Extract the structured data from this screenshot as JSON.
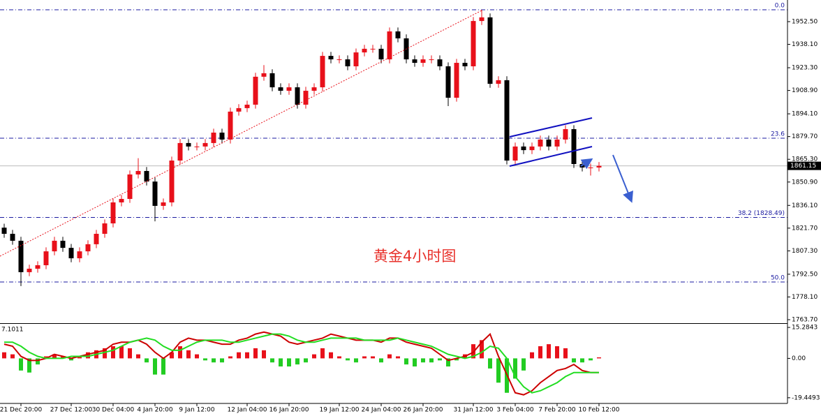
{
  "chart_data": [
    {
      "type": "candlestick",
      "annotation": "黄金4小时图",
      "categories": [
        null,
        null,
        "21 Dec 20:00",
        null,
        null,
        null,
        null,
        null,
        "27 Dec 12:00",
        null,
        null,
        null,
        null,
        "30 Dec 04:00",
        null,
        null,
        null,
        null,
        "4 Jan 20:00",
        null,
        null,
        null,
        null,
        "9 Jan 12:00",
        null,
        null,
        null,
        null,
        null,
        "12 Jan 04:00",
        null,
        null,
        null,
        null,
        "16 Jan 20:00",
        null,
        null,
        null,
        null,
        null,
        "19 Jan 12:00",
        null,
        null,
        null,
        null,
        "24 Jan 04:00",
        null,
        null,
        null,
        null,
        "26 Jan 20:00",
        null,
        null,
        null,
        null,
        null,
        "31 Jan 12:00",
        null,
        null,
        null,
        null,
        "3 Feb 04:00",
        null,
        null,
        null,
        null,
        "7 Feb 20:00",
        null,
        null,
        null,
        null,
        "10 Feb 12:00"
      ],
      "open": [
        1822.0,
        1818.1,
        1813.7,
        1793.8,
        1796.0,
        1798.2,
        1807.0,
        1813.7,
        1809.2,
        1802.6,
        1807.0,
        1811.5,
        1818.1,
        1824.7,
        1838.0,
        1840.2,
        1855.7,
        1857.9,
        1851.2,
        1835.8,
        1838.0,
        1864.5,
        1875.6,
        1873.4,
        1873.4,
        1875.6,
        1882.2,
        1877.8,
        1895.5,
        1897.7,
        1899.9,
        1917.6,
        1919.8,
        1910.9,
        1908.7,
        1910.9,
        1899.9,
        1908.7,
        1910.9,
        1930.8,
        1928.6,
        1928.6,
        1924.2,
        1933.0,
        1935.3,
        1935.3,
        1928.6,
        1946.3,
        1941.9,
        1928.6,
        1926.4,
        1928.6,
        1928.6,
        1924.2,
        1904.3,
        1926.4,
        1924.2,
        1952.9,
        1955.2,
        1913.1,
        1915.4,
        1864.5,
        1873.4,
        1871.1,
        1873.4,
        1877.8,
        1873.4,
        1877.8,
        1884.4,
        1862.3,
        1860.1,
        1860.1
      ],
      "high": [
        1824.5,
        1820.6,
        1816.2,
        1798.5,
        1800.7,
        1809.5,
        1816.2,
        1816.2,
        1811.7,
        1809.5,
        1814.0,
        1820.6,
        1827.2,
        1840.5,
        1842.7,
        1858.2,
        1866.0,
        1860.4,
        1853.7,
        1840.5,
        1867.0,
        1878.1,
        1878.1,
        1875.9,
        1878.1,
        1884.7,
        1884.7,
        1898.0,
        1900.2,
        1902.4,
        1920.1,
        1925.0,
        1922.3,
        1913.4,
        1913.4,
        1913.4,
        1911.2,
        1913.4,
        1933.3,
        1933.3,
        1931.1,
        1931.1,
        1935.5,
        1937.8,
        1937.8,
        1937.8,
        1948.8,
        1948.8,
        1944.4,
        1931.1,
        1931.1,
        1931.1,
        1931.1,
        1926.7,
        1928.9,
        1928.9,
        1955.4,
        1960.0,
        1957.7,
        1917.9,
        1917.9,
        1875.9,
        1875.9,
        1875.9,
        1880.3,
        1880.3,
        1880.3,
        1886.9,
        1886.9,
        1864.8,
        1862.6,
        1863.6
      ],
      "low": [
        1815.6,
        1811.2,
        1785.0,
        1791.3,
        1793.5,
        1795.7,
        1804.5,
        1806.7,
        1800.1,
        1800.1,
        1804.5,
        1809.0,
        1815.6,
        1822.2,
        1835.5,
        1837.7,
        1853.2,
        1848.7,
        1826.0,
        1833.3,
        1835.5,
        1862.0,
        1870.9,
        1870.9,
        1870.9,
        1873.1,
        1875.3,
        1875.3,
        1893.0,
        1895.2,
        1897.4,
        1915.1,
        1908.4,
        1906.2,
        1906.2,
        1897.4,
        1897.4,
        1906.2,
        1908.4,
        1926.1,
        1926.1,
        1921.7,
        1921.7,
        1930.5,
        1932.8,
        1926.1,
        1926.1,
        1939.4,
        1926.1,
        1923.9,
        1923.9,
        1926.1,
        1921.7,
        1899.0,
        1901.8,
        1921.7,
        1921.7,
        1950.4,
        1910.6,
        1910.6,
        1862.0,
        1862.0,
        1868.6,
        1868.6,
        1870.9,
        1870.9,
        1870.9,
        1875.3,
        1859.8,
        1857.6,
        1855.0,
        1857.6
      ],
      "close": [
        1818.1,
        1813.7,
        1793.8,
        1796.0,
        1798.2,
        1807.0,
        1813.7,
        1809.2,
        1802.6,
        1807.0,
        1811.5,
        1818.1,
        1824.7,
        1838.0,
        1840.2,
        1855.7,
        1857.9,
        1851.2,
        1835.8,
        1838.0,
        1864.5,
        1875.6,
        1873.4,
        1873.4,
        1875.6,
        1882.2,
        1877.8,
        1895.5,
        1897.7,
        1899.9,
        1917.6,
        1919.8,
        1910.9,
        1908.7,
        1910.9,
        1899.9,
        1908.7,
        1910.9,
        1930.8,
        1928.6,
        1928.6,
        1924.2,
        1933.0,
        1935.3,
        1935.3,
        1928.6,
        1946.3,
        1941.9,
        1928.6,
        1926.4,
        1928.6,
        1928.6,
        1924.2,
        1904.3,
        1926.4,
        1924.2,
        1952.9,
        1955.2,
        1913.1,
        1915.4,
        1864.5,
        1873.4,
        1871.1,
        1873.4,
        1877.8,
        1873.4,
        1877.8,
        1884.4,
        1862.3,
        1860.1,
        1860.1,
        1861.15
      ],
      "up_color": "#e8101a",
      "down_color": "#000000",
      "ylim": [
        1761.5,
        1966.2
      ],
      "yticks": [
        {
          "value": 1952.5,
          "label": "1952.50"
        },
        {
          "value": 1938.1,
          "label": "1938.10"
        },
        {
          "value": 1923.3,
          "label": "1923.30"
        },
        {
          "value": 1908.9,
          "label": "1908.90"
        },
        {
          "value": 1894.1,
          "label": "1894.10"
        },
        {
          "value": 1879.7,
          "label": "1879.70"
        },
        {
          "value": 1865.3,
          "label": "1865.30"
        },
        {
          "value": 1850.9,
          "label": "1850.90"
        },
        {
          "value": 1836.1,
          "label": "1836.10"
        },
        {
          "value": 1821.7,
          "label": "1821.70"
        },
        {
          "value": 1807.3,
          "label": "1807.30"
        },
        {
          "value": 1792.5,
          "label": "1792.50"
        },
        {
          "value": 1778.1,
          "label": "1778.10"
        },
        {
          "value": 1763.7,
          "label": "1763.70"
        }
      ],
      "fib_levels": [
        {
          "level": "0.0",
          "price": 1959.99
        },
        {
          "level": "23.6",
          "price": 1878.66
        },
        {
          "level": "38.2 (1828.49)",
          "price": 1828.49
        },
        {
          "level": "50.0",
          "price": 1787.6
        }
      ],
      "fib_color": "#1a1aa0",
      "last_price": 1861.15
    },
    {
      "type": "macd",
      "label": "7.1011",
      "ylim": [
        -22.26,
        17.04
      ],
      "yticks": [
        15.2843,
        {
          "value": 0,
          "label": "0.00"
        },
        -19.4493
      ],
      "histogram": {
        "up_color": "#e8101a",
        "down_color": "#22cc22",
        "values": [
          3,
          2,
          -6,
          -7,
          -3,
          1,
          2,
          1,
          -1,
          1,
          3,
          4,
          5,
          6,
          6,
          5,
          2,
          -2,
          -8,
          -8,
          3,
          6,
          4,
          2,
          -1,
          -2,
          -2,
          1,
          3,
          3,
          5,
          4,
          -2,
          -4,
          -4,
          -3,
          -2,
          2,
          5,
          3,
          1,
          -1,
          -2,
          1,
          1,
          -2,
          2,
          1,
          -3,
          -4,
          -2,
          -2,
          -1,
          -4,
          -1,
          2,
          7,
          9,
          -5,
          -12,
          -17,
          -10,
          -6,
          3,
          6,
          7,
          6,
          5,
          -2,
          -2,
          -1,
          0.5
        ]
      },
      "series": [
        {
          "color": "#cc0000",
          "values": [
            7,
            6,
            1,
            -1,
            -1,
            0,
            2,
            1,
            0,
            1,
            2,
            3,
            4,
            7,
            8,
            8,
            9,
            7,
            3,
            0,
            3,
            8,
            10,
            9,
            9,
            8,
            7,
            7,
            9,
            10,
            12,
            13,
            12,
            11,
            8,
            7,
            8,
            9,
            10,
            12,
            11,
            10,
            9,
            9,
            9,
            8,
            10,
            10,
            8,
            7,
            6,
            5,
            2,
            -1,
            0,
            1,
            3,
            8,
            12,
            1,
            -8,
            -17,
            -18,
            -16,
            -12,
            -9,
            -6,
            -5,
            -3,
            -6,
            -7,
            -7
          ]
        },
        {
          "color": "#22dd22",
          "values": [
            8,
            8,
            6,
            3,
            1,
            0,
            0,
            0,
            1,
            1,
            1,
            2,
            3,
            4,
            6,
            8,
            9,
            10,
            9,
            6,
            4,
            4,
            6,
            8,
            9,
            9,
            9,
            8,
            8,
            9,
            10,
            11,
            12,
            12,
            11,
            9,
            8,
            8,
            9,
            10,
            10,
            10,
            10,
            9,
            9,
            9,
            9,
            10,
            9,
            8,
            7,
            6,
            4,
            2,
            1,
            0,
            1,
            3,
            6,
            5,
            0,
            -9,
            -14,
            -17,
            -16,
            -14,
            -12,
            -9,
            -7,
            -7,
            -7,
            -7
          ]
        }
      ]
    }
  ]
}
